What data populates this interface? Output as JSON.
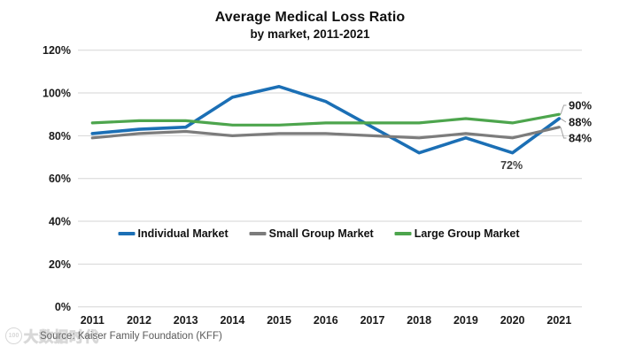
{
  "chart_data": {
    "type": "line",
    "title": "Average Medical Loss Ratio",
    "subtitle": "by market, 2011-2021",
    "x": [
      2011,
      2012,
      2013,
      2014,
      2015,
      2016,
      2017,
      2018,
      2019,
      2020,
      2021
    ],
    "xticks": [
      "2011",
      "2012",
      "2013",
      "2014",
      "2015",
      "2016",
      "2017",
      "2018",
      "2019",
      "2020",
      "2021"
    ],
    "yticks": [
      "0%",
      "20%",
      "40%",
      "60%",
      "80%",
      "100%",
      "120%"
    ],
    "ylim": [
      0,
      120
    ],
    "ytick_step": 20,
    "grid": "horizontal",
    "legend_position": "inside-bottom",
    "series": [
      {
        "name": "Individual Market",
        "color": "#1b6fb5",
        "values": [
          81,
          83,
          84,
          98,
          103,
          96,
          84,
          72,
          79,
          72,
          88
        ]
      },
      {
        "name": "Small Group Market",
        "color": "#7c7c7c",
        "values": [
          79,
          81,
          82,
          80,
          81,
          81,
          80,
          79,
          81,
          79,
          84
        ]
      },
      {
        "name": "Large Group Market",
        "color": "#4da54d",
        "values": [
          86,
          87,
          87,
          85,
          85,
          86,
          86,
          86,
          88,
          86,
          90
        ]
      }
    ],
    "end_labels": [
      {
        "series": "Large Group Market",
        "text": "90%"
      },
      {
        "series": "Individual Market",
        "text": "88%"
      },
      {
        "series": "Small Group Market",
        "text": "84%"
      }
    ],
    "annotations": [
      {
        "text": "72%",
        "year": 2020,
        "series": "Individual Market",
        "placement": "below-point"
      }
    ]
  },
  "source": "Source: Kaiser Family Foundation (KFF)",
  "watermark": {
    "logo": "100",
    "text": "大数据时代"
  }
}
